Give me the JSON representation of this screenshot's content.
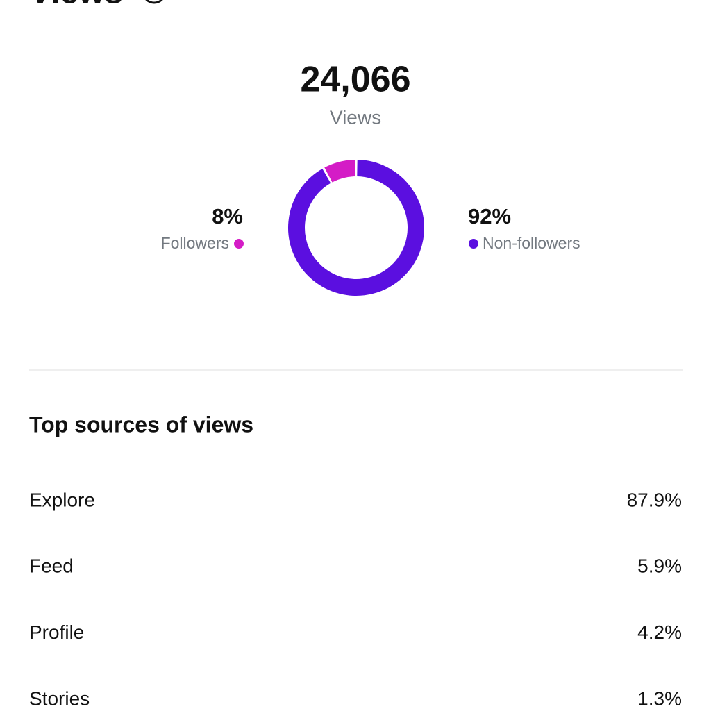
{
  "header": {
    "title": "Views"
  },
  "summary": {
    "total": "24,066",
    "label": "Views"
  },
  "chart_data": {
    "type": "pie",
    "categories": [
      "Followers",
      "Non-followers"
    ],
    "values": [
      8,
      92
    ],
    "value_labels": [
      "8%",
      "92%"
    ],
    "colors": [
      "#d41cc6",
      "#5b0fe0"
    ]
  },
  "sources": {
    "title": "Top sources of views",
    "rows": [
      [
        "Explore",
        "87.9%"
      ],
      [
        "Feed",
        "5.9%"
      ],
      [
        "Profile",
        "4.2%"
      ],
      [
        "Stories",
        "1.3%"
      ]
    ]
  }
}
